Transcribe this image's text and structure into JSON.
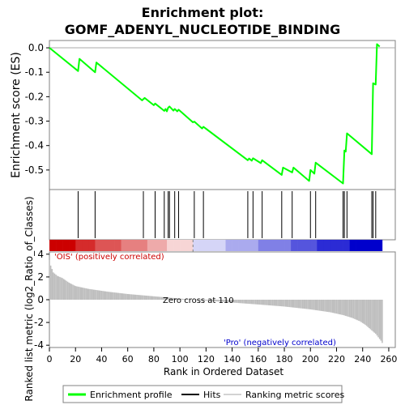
{
  "chart_data": {
    "type": "line",
    "title_line1": "Enrichment plot:",
    "title_line2": "GOMF_ADENYL_NUCLEOTIDE_BINDING",
    "es_panel": {
      "ylabel": "Enrichment score (ES)",
      "ylim": [
        -0.58,
        0.03
      ],
      "yticks": [
        "0.0",
        "-0.1",
        "-0.2",
        "-0.3",
        "-0.4",
        "-0.5"
      ],
      "ytick_values": [
        0.0,
        -0.1,
        -0.2,
        -0.3,
        -0.4,
        -0.5
      ],
      "series": [
        {
          "name": "Enrichment profile",
          "color": "#00ff00",
          "x": [
            0,
            22,
            23,
            35,
            36,
            71,
            73,
            80,
            81,
            88,
            89,
            90,
            91,
            92,
            95,
            96,
            98,
            99,
            110,
            111,
            117,
            118,
            152,
            153,
            155,
            156,
            162,
            163,
            178,
            179,
            186,
            187,
            199,
            200,
            203,
            204,
            225,
            226,
            227,
            228,
            247,
            248,
            250,
            251,
            253
          ],
          "y": [
            0.0,
            -0.095,
            -0.045,
            -0.1,
            -0.06,
            -0.215,
            -0.205,
            -0.235,
            -0.228,
            -0.258,
            -0.25,
            -0.26,
            -0.245,
            -0.24,
            -0.257,
            -0.25,
            -0.26,
            -0.253,
            -0.305,
            -0.302,
            -0.33,
            -0.323,
            -0.46,
            -0.453,
            -0.462,
            -0.452,
            -0.472,
            -0.46,
            -0.52,
            -0.49,
            -0.51,
            -0.49,
            -0.545,
            -0.5,
            -0.515,
            -0.47,
            -0.555,
            -0.42,
            -0.425,
            -0.35,
            -0.435,
            -0.145,
            -0.15,
            0.015,
            0.005
          ]
        }
      ]
    },
    "hits_panel": {
      "hit_positions": [
        22,
        35,
        72,
        81,
        88,
        91,
        92,
        96,
        99,
        111,
        118,
        152,
        156,
        163,
        178,
        186,
        200,
        204,
        225,
        226,
        228,
        247,
        248,
        250
      ]
    },
    "ranking_panel": {
      "ylabel": "Ranked list metric (log2_Ratio_of_Classes)",
      "ylim": [
        -4.2,
        4.2
      ],
      "yticks": [
        "4",
        "2",
        "0",
        "-2",
        "-4"
      ],
      "ytick_values": [
        4,
        2,
        0,
        -2,
        -4
      ],
      "zero_cross_label": "Zero cross at 110",
      "zero_cross_rank": 110,
      "positive_label": "'OIS' (positively correlated)",
      "negative_label": "'Pro' (negatively correlated)",
      "positive_color": "#cc0000",
      "negative_color": "#0000cc",
      "metric_profile": {
        "ranks": [
          0,
          1,
          3,
          6,
          10,
          15,
          20,
          30,
          45,
          60,
          80,
          95,
          110,
          125,
          140,
          160,
          180,
          200,
          215,
          225,
          232,
          238,
          242,
          245,
          248,
          250,
          252,
          254,
          255
        ],
        "values": [
          3.5,
          3.0,
          2.4,
          2.1,
          1.9,
          1.5,
          1.2,
          0.95,
          0.7,
          0.5,
          0.3,
          0.15,
          0.0,
          -0.12,
          -0.25,
          -0.42,
          -0.6,
          -0.85,
          -1.1,
          -1.35,
          -1.6,
          -1.9,
          -2.2,
          -2.5,
          -2.8,
          -3.0,
          -3.3,
          -3.6,
          -3.8
        ]
      }
    },
    "xaxis": {
      "xlabel": "Rank in Ordered Dataset",
      "xlim": [
        0,
        265
      ],
      "xticks": [
        "0",
        "20",
        "40",
        "60",
        "80",
        "100",
        "120",
        "140",
        "160",
        "180",
        "200",
        "220",
        "240",
        "260"
      ],
      "xtick_values": [
        0,
        20,
        40,
        60,
        80,
        100,
        120,
        140,
        160,
        180,
        200,
        220,
        240,
        260
      ]
    },
    "legend": {
      "placement": "bottom",
      "entries": [
        "Enrichment profile",
        "Hits",
        "Ranking metric scores"
      ],
      "colors": [
        "#00ff00",
        "#000000",
        "#d3d3d3"
      ]
    }
  }
}
